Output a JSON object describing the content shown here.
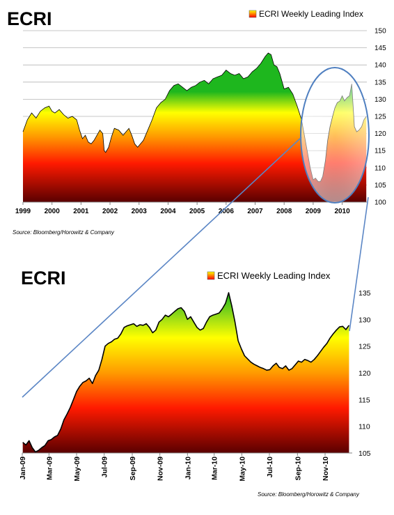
{
  "colors": {
    "gradient_top": "#1eb71e",
    "gradient_yellow": "#ffff00",
    "gradient_orange": "#ff8000",
    "gradient_red": "#ff1a00",
    "gradient_bottom": "#5a0000",
    "line": "#000000",
    "grid": "#b4b4b4",
    "connector": "#5b86c5",
    "highlight_ellipse": "#4f7fc0"
  },
  "chart_data": [
    {
      "type": "area",
      "title": "ECRI",
      "legend": "ECRI Weekly Leading Index",
      "legend_position": "top-right",
      "source": "Source: Bloomberg/Horowitz  & Company",
      "ylim": [
        100,
        150
      ],
      "yticks": [
        100,
        105,
        110,
        115,
        120,
        125,
        130,
        135,
        140,
        145,
        150
      ],
      "y_axis_side": "right",
      "xlim": [
        1999,
        2010.85
      ],
      "xticks": [
        "1999",
        "2000",
        "2001",
        "2002",
        "2003",
        "2004",
        "2005",
        "2006",
        "2007",
        "2008",
        "2009",
        "2010"
      ],
      "grid": true,
      "series": [
        {
          "x": [
            1999.0,
            1999.15,
            1999.3,
            1999.45,
            1999.6,
            1999.75,
            1999.9,
            2000.0,
            2000.1,
            2000.25,
            2000.4,
            2000.55,
            2000.7,
            2000.85,
            2000.95,
            2001.05,
            2001.15,
            2001.25,
            2001.35,
            2001.45,
            2001.55,
            2001.65,
            2001.75,
            2001.8,
            2001.85,
            2001.95,
            2002.05,
            2002.15,
            2002.3,
            2002.45,
            2002.55,
            2002.65,
            2002.75,
            2002.85,
            2002.95,
            2003.05,
            2003.15,
            2003.3,
            2003.45,
            2003.6,
            2003.75,
            2003.9,
            2004.05,
            2004.2,
            2004.35,
            2004.5,
            2004.65,
            2004.8,
            2004.95,
            2005.1,
            2005.25,
            2005.4,
            2005.55,
            2005.7,
            2005.85,
            2006.0,
            2006.15,
            2006.3,
            2006.45,
            2006.6,
            2006.75,
            2006.9,
            2007.05,
            2007.2,
            2007.35,
            2007.45,
            2007.55,
            2007.65,
            2007.75,
            2007.85,
            2008.0,
            2008.15,
            2008.3,
            2008.45,
            2008.6,
            2008.75,
            2008.9,
            2009.0,
            2009.08,
            2009.17,
            2009.25,
            2009.33,
            2009.42,
            2009.5,
            2009.58,
            2009.67,
            2009.75,
            2009.83,
            2009.92,
            2010.0,
            2010.08,
            2010.17,
            2010.25,
            2010.33,
            2010.42,
            2010.5,
            2010.58,
            2010.67,
            2010.75,
            2010.83
          ],
          "values": [
            120.5,
            124.0,
            126.0,
            124.5,
            126.5,
            127.5,
            128.0,
            126.5,
            126.0,
            127.0,
            125.5,
            124.5,
            125.0,
            124.0,
            121.0,
            118.5,
            119.5,
            117.5,
            117.0,
            118.0,
            119.5,
            121.0,
            120.0,
            115.0,
            114.5,
            116.0,
            119.0,
            121.5,
            121.0,
            119.5,
            120.5,
            121.5,
            119.5,
            117.0,
            116.0,
            117.0,
            118.0,
            121.0,
            124.0,
            127.5,
            129.0,
            130.0,
            132.5,
            134.0,
            134.5,
            133.5,
            132.5,
            133.5,
            134.0,
            135.0,
            135.5,
            134.5,
            136.0,
            136.5,
            137.0,
            138.5,
            137.5,
            137.0,
            137.5,
            136.0,
            136.5,
            138.0,
            139.0,
            140.5,
            142.5,
            143.5,
            143.0,
            140.0,
            139.5,
            137.5,
            133.0,
            133.5,
            131.5,
            128.0,
            124.0,
            117.0,
            110.0,
            106.5,
            107.0,
            106.0,
            106.0,
            107.5,
            112.0,
            118.0,
            122.0,
            125.0,
            127.5,
            129.0,
            129.5,
            131.0,
            129.5,
            130.5,
            131.0,
            134.5,
            122.0,
            120.5,
            121.0,
            122.0,
            124.0,
            125.0
          ]
        }
      ]
    },
    {
      "type": "area",
      "title": "ECRI",
      "legend": "ECRI Weekly Leading Index",
      "legend_position": "top-right",
      "source": "Source: Bloomberg/Horowitz  & Company",
      "ylim": [
        105,
        135
      ],
      "yticks": [
        105,
        110,
        115,
        120,
        125,
        130,
        135
      ],
      "y_axis_side": "right",
      "xlim": [
        "2009-01-01",
        "2010-12-31"
      ],
      "xticks": [
        "Jan-09",
        "Mar-09",
        "May-09",
        "Jul-09",
        "Sep-09",
        "Nov-09",
        "Jan-10",
        "Mar-10",
        "May-10",
        "Jul-10",
        "Sep-10",
        "Nov-10"
      ],
      "grid": false,
      "series": [
        {
          "x": [
            "2009-01-02",
            "2009-01-09",
            "2009-01-16",
            "2009-01-23",
            "2009-01-30",
            "2009-02-06",
            "2009-02-13",
            "2009-02-20",
            "2009-02-27",
            "2009-03-06",
            "2009-03-13",
            "2009-03-20",
            "2009-03-27",
            "2009-04-03",
            "2009-04-10",
            "2009-04-17",
            "2009-04-24",
            "2009-05-01",
            "2009-05-08",
            "2009-05-15",
            "2009-05-22",
            "2009-05-29",
            "2009-06-05",
            "2009-06-12",
            "2009-06-19",
            "2009-06-26",
            "2009-07-03",
            "2009-07-10",
            "2009-07-17",
            "2009-07-24",
            "2009-07-31",
            "2009-08-07",
            "2009-08-14",
            "2009-08-21",
            "2009-08-28",
            "2009-09-04",
            "2009-09-11",
            "2009-09-18",
            "2009-09-25",
            "2009-10-02",
            "2009-10-09",
            "2009-10-16",
            "2009-10-23",
            "2009-10-30",
            "2009-11-06",
            "2009-11-13",
            "2009-11-20",
            "2009-11-27",
            "2009-12-04",
            "2009-12-11",
            "2009-12-18",
            "2009-12-25",
            "2010-01-01",
            "2010-01-08",
            "2010-01-15",
            "2010-01-22",
            "2010-01-29",
            "2010-02-05",
            "2010-02-12",
            "2010-02-19",
            "2010-02-26",
            "2010-03-05",
            "2010-03-12",
            "2010-03-19",
            "2010-03-26",
            "2010-04-02",
            "2010-04-09",
            "2010-04-16",
            "2010-04-23",
            "2010-04-30",
            "2010-05-07",
            "2010-05-14",
            "2010-05-21",
            "2010-05-28",
            "2010-06-04",
            "2010-06-11",
            "2010-06-18",
            "2010-06-25",
            "2010-07-02",
            "2010-07-09",
            "2010-07-16",
            "2010-07-23",
            "2010-07-30",
            "2010-08-06",
            "2010-08-13",
            "2010-08-20",
            "2010-08-27",
            "2010-09-03",
            "2010-09-10",
            "2010-09-17",
            "2010-09-24",
            "2010-10-01",
            "2010-10-08",
            "2010-10-15",
            "2010-10-22",
            "2010-10-29",
            "2010-11-05",
            "2010-11-12",
            "2010-11-19",
            "2010-11-26",
            "2010-12-03",
            "2010-12-10",
            "2010-12-17",
            "2010-12-24"
          ],
          "values": [
            107.0,
            106.5,
            107.3,
            106.0,
            105.2,
            105.5,
            106.0,
            106.4,
            107.3,
            107.5,
            108.0,
            108.3,
            109.5,
            111.2,
            112.3,
            113.5,
            115.0,
            116.5,
            117.5,
            118.2,
            118.5,
            119.0,
            118.0,
            119.5,
            120.5,
            122.5,
            125.0,
            125.5,
            125.8,
            126.3,
            126.5,
            127.3,
            128.5,
            128.8,
            129.0,
            129.2,
            128.7,
            129.0,
            128.9,
            129.2,
            128.5,
            127.5,
            128.0,
            129.5,
            130.0,
            130.8,
            130.5,
            131.0,
            131.5,
            132.0,
            132.2,
            131.5,
            130.0,
            130.5,
            129.5,
            128.5,
            128.0,
            128.3,
            129.5,
            130.5,
            130.8,
            131.0,
            131.2,
            132.0,
            133.0,
            135.0,
            132.5,
            129.5,
            126.0,
            124.5,
            123.2,
            122.6,
            122.0,
            121.6,
            121.3,
            121.0,
            120.8,
            120.5,
            120.6,
            121.3,
            121.8,
            121.0,
            120.8,
            121.3,
            120.5,
            120.8,
            121.5,
            122.2,
            122.0,
            122.5,
            122.3,
            122.0,
            122.5,
            123.2,
            124.0,
            124.8,
            125.5,
            126.5,
            127.3,
            128.0,
            128.6,
            128.7,
            128.1,
            128.9
          ]
        }
      ]
    }
  ]
}
